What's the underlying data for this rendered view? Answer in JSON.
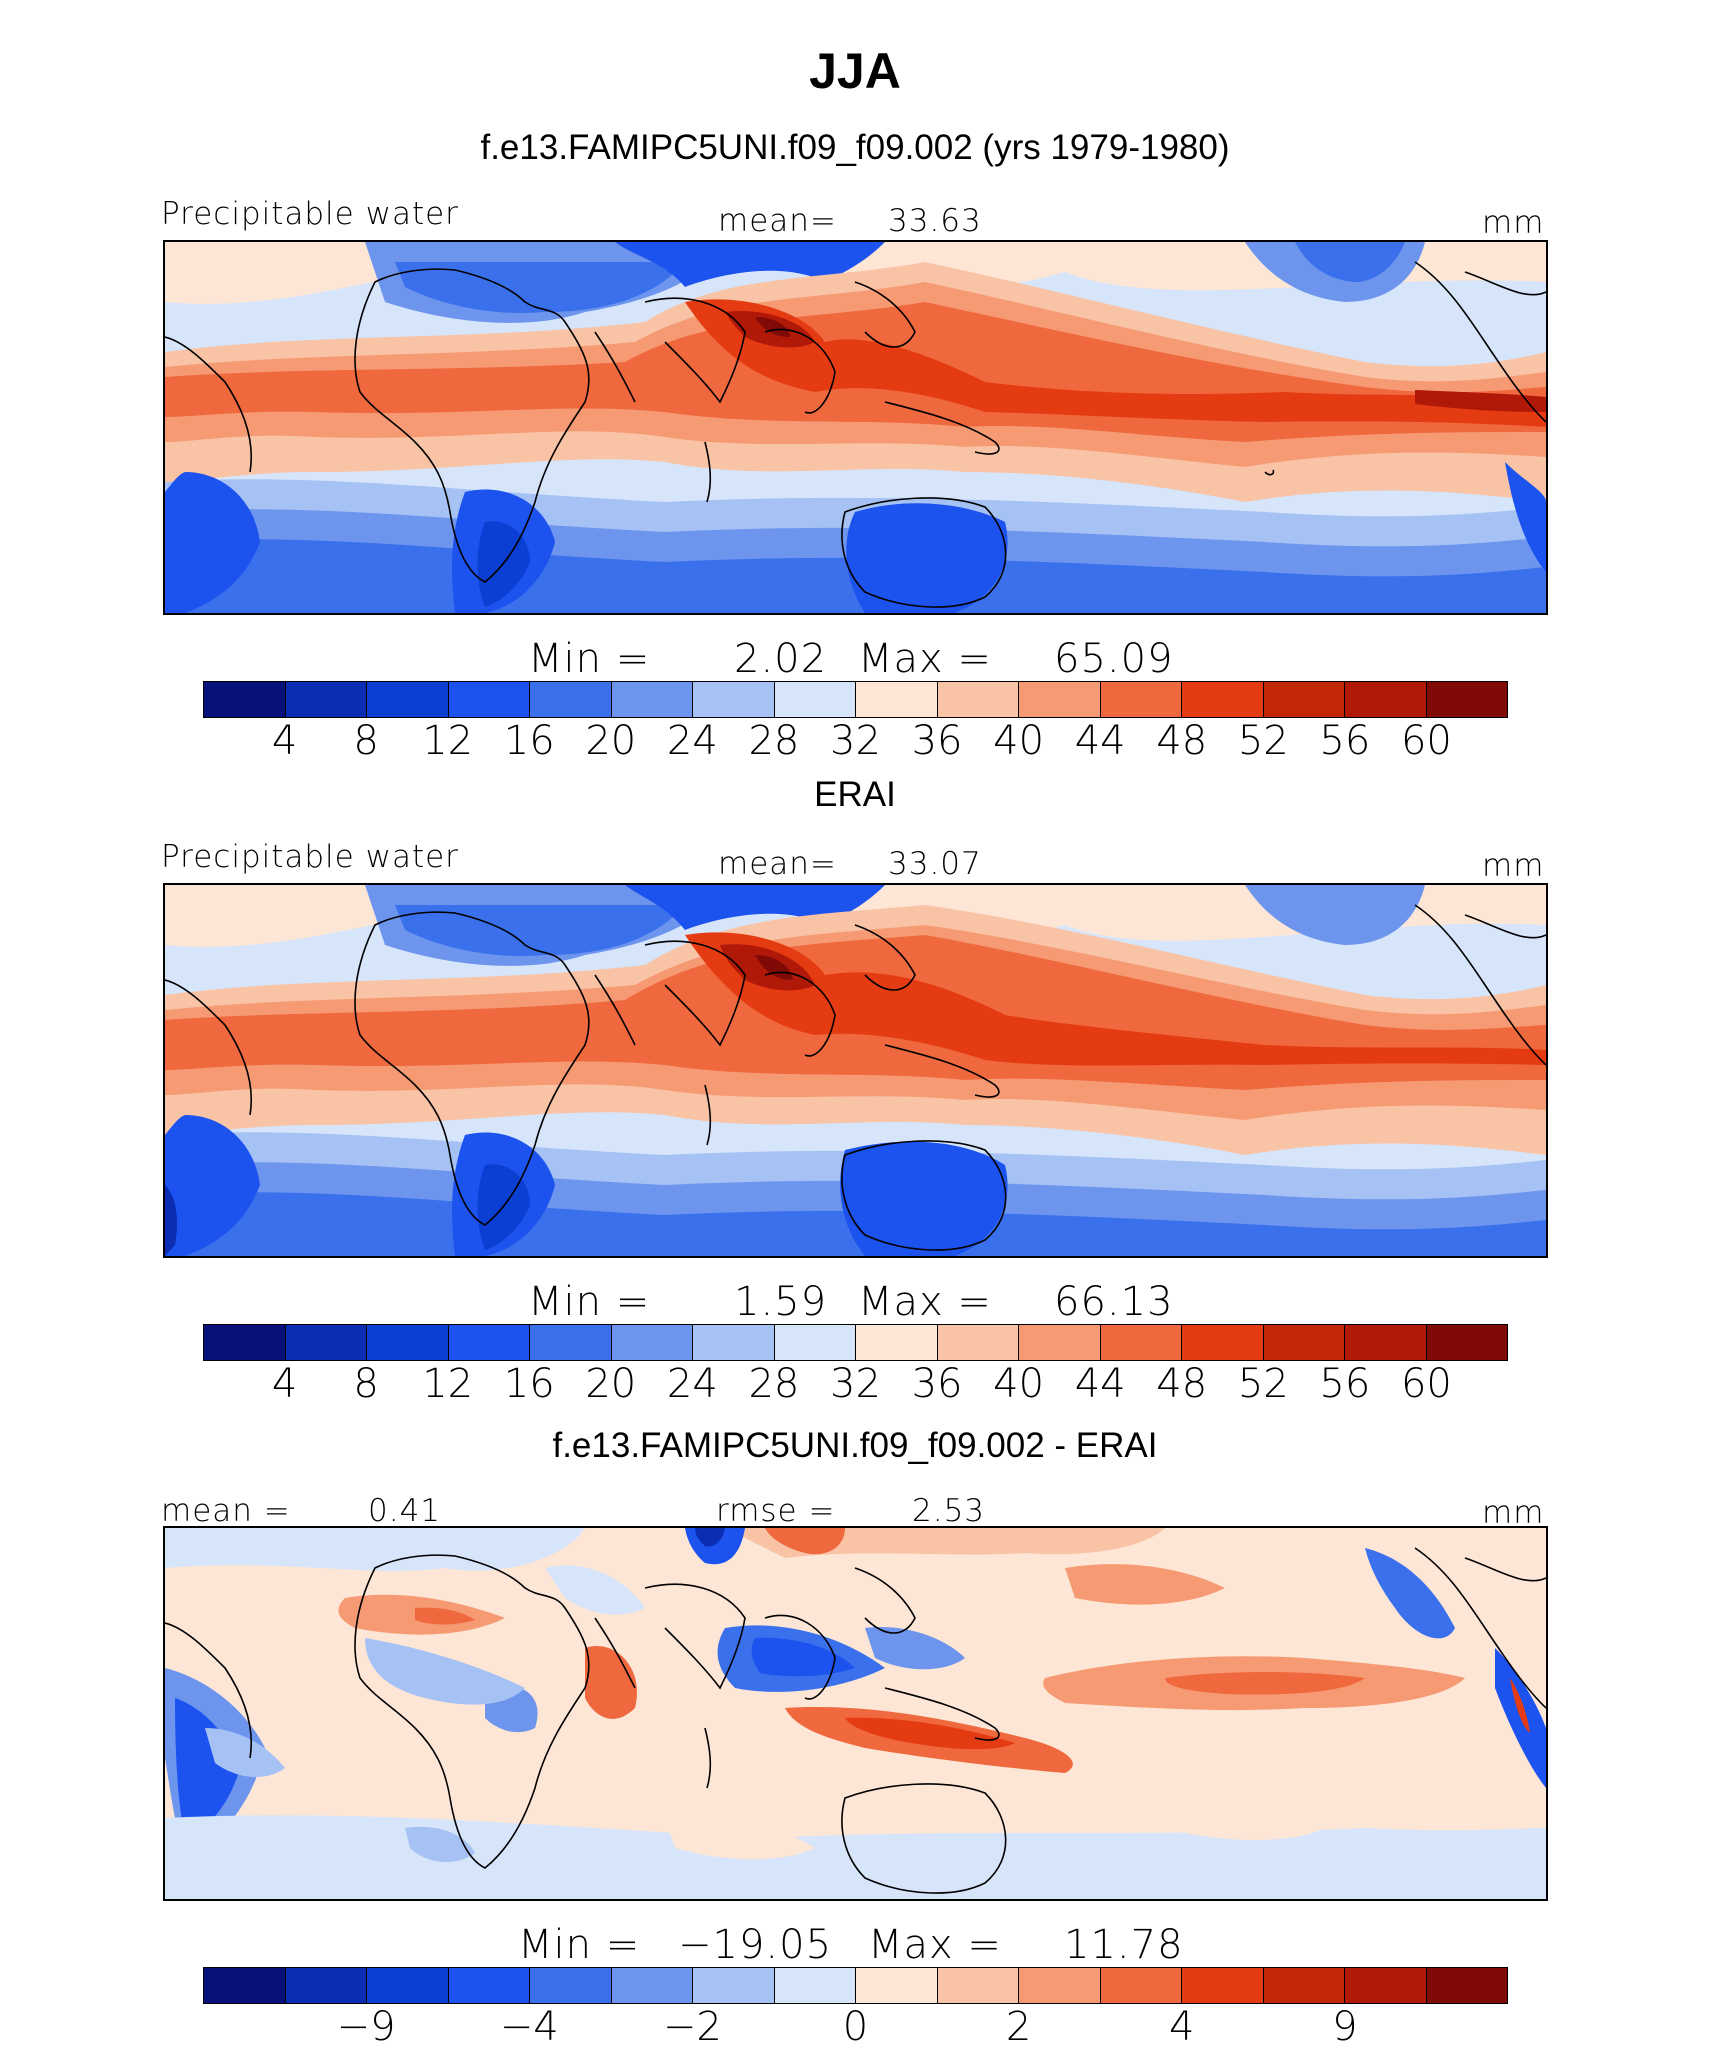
{
  "main_title": "JJA",
  "chart_data": [
    {
      "type": "heatmap",
      "panel_title": "f.e13.FAMIPC5UNI.f09_f09.002 (yrs 1979-1980)",
      "variable": "Precipitable water",
      "stat_label": "mean=",
      "stat_value": "33.63",
      "unit": "mm",
      "min_label": "Min =",
      "min": "2.02",
      "max_label": "Max =",
      "max": "65.09",
      "colorbar_ticks": [
        "4",
        "8",
        "12",
        "16",
        "20",
        "24",
        "28",
        "32",
        "36",
        "40",
        "44",
        "48",
        "52",
        "56",
        "60"
      ]
    },
    {
      "type": "heatmap",
      "panel_title": "ERAI",
      "variable": "Precipitable water",
      "stat_label": "mean=",
      "stat_value": "33.07",
      "unit": "mm",
      "min_label": "Min =",
      "min": "1.59",
      "max_label": "Max =",
      "max": "66.13",
      "colorbar_ticks": [
        "4",
        "8",
        "12",
        "16",
        "20",
        "24",
        "28",
        "32",
        "36",
        "40",
        "44",
        "48",
        "52",
        "56",
        "60"
      ]
    },
    {
      "type": "heatmap",
      "panel_title": "f.e13.FAMIPC5UNI.f09_f09.002 - ERAI",
      "stat_label": "mean =",
      "stat_value": "0.41",
      "rmse_label": "rmse =",
      "rmse_value": "2.53",
      "unit": "mm",
      "min_label": "Min =",
      "min": "−19.05",
      "max_label": "Max =",
      "max": "11.78",
      "colorbar_ticks": [
        "−9",
        "−4",
        "−2",
        "0",
        "2",
        "4",
        "9"
      ]
    }
  ],
  "colors": {
    "palette": [
      "#08107a",
      "#0a2db4",
      "#0b3fd4",
      "#1c52ee",
      "#3a70ec",
      "#6d95ee",
      "#a6c2f4",
      "#d6e5fa",
      "#fde6d6",
      "#f9c3a6",
      "#f69a74",
      "#f0683e",
      "#e43b12",
      "#c22808",
      "#b01808",
      "#800a06"
    ]
  }
}
